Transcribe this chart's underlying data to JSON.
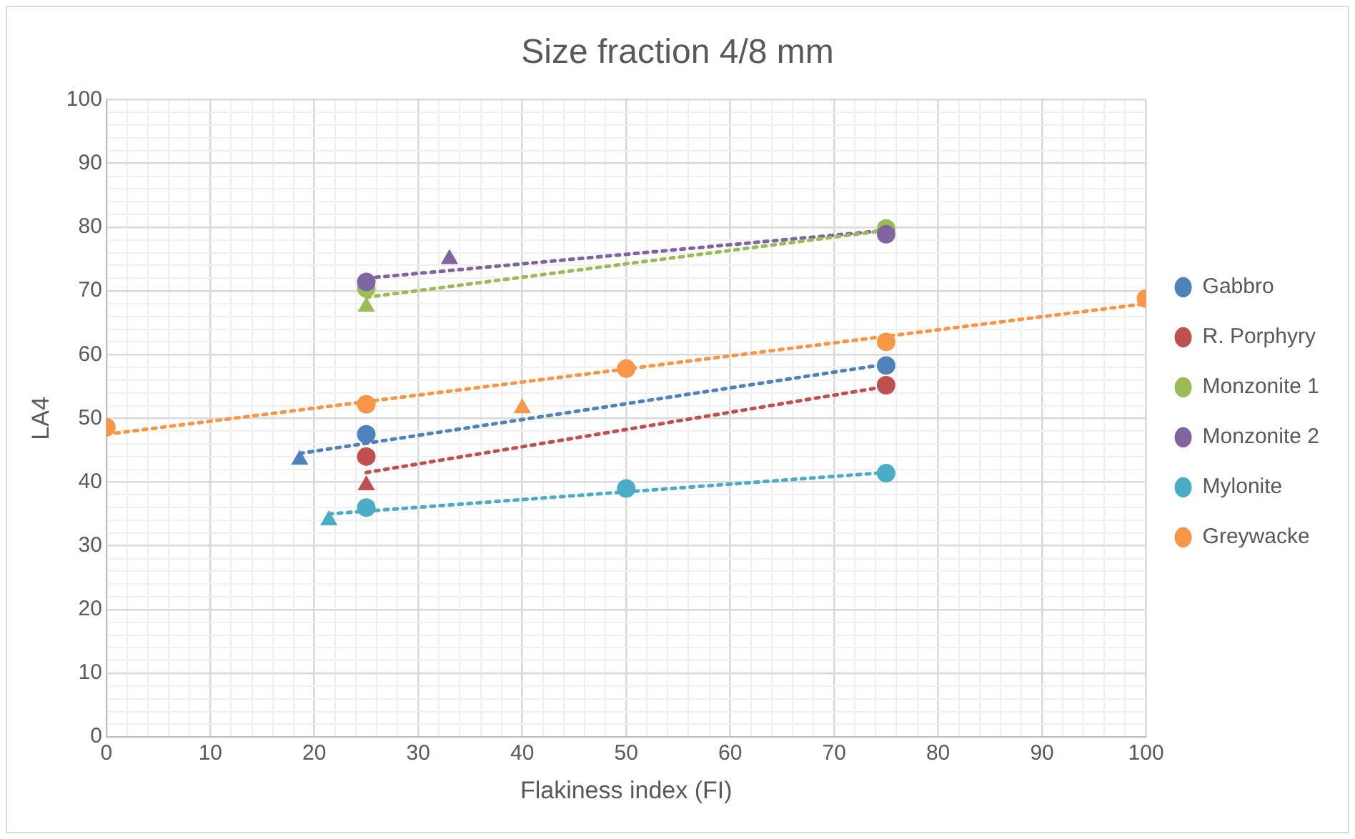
{
  "chart_data": {
    "type": "scatter",
    "title": "Size fraction 4/8 mm",
    "xlabel": "Flakiness index (FI)",
    "ylabel": "LA4",
    "xlim": [
      0,
      100
    ],
    "ylim": [
      0,
      100
    ],
    "xticks": [
      0,
      {
        "value": 2,
        "label": null
      },
      {
        "value": 4,
        "label": null
      },
      {
        "value": 6,
        "label": null
      },
      {
        "value": 8,
        "label": null
      },
      10,
      {
        "value": 12,
        "label": null
      },
      {
        "value": 14,
        "label": null
      },
      {
        "value": 16,
        "label": null
      },
      {
        "value": 18,
        "label": null
      },
      20,
      {
        "value": 22,
        "label": null
      },
      {
        "value": 24,
        "label": null
      },
      {
        "value": 26,
        "label": null
      },
      {
        "value": 28,
        "label": null
      },
      30,
      {
        "value": 32,
        "label": null
      },
      {
        "value": 34,
        "label": null
      },
      {
        "value": 36,
        "label": null
      },
      {
        "value": 38,
        "label": null
      },
      40,
      {
        "value": 42,
        "label": null
      },
      {
        "value": 44,
        "label": null
      },
      {
        "value": 46,
        "label": null
      },
      {
        "value": 48,
        "label": null
      },
      50,
      {
        "value": 52,
        "label": null
      },
      {
        "value": 54,
        "label": null
      },
      {
        "value": 56,
        "label": null
      },
      {
        "value": 58,
        "label": null
      },
      60,
      {
        "value": 62,
        "label": null
      },
      {
        "value": 64,
        "label": null
      },
      {
        "value": 66,
        "label": null
      },
      {
        "value": 68,
        "label": null
      },
      70,
      {
        "value": 72,
        "label": null
      },
      {
        "value": 74,
        "label": null
      },
      {
        "value": 76,
        "label": null
      },
      {
        "value": 78,
        "label": null
      },
      80,
      {
        "value": 82,
        "label": null
      },
      {
        "value": 84,
        "label": null
      },
      {
        "value": 86,
        "label": null
      },
      {
        "value": 88,
        "label": null
      },
      90,
      {
        "value": 92,
        "label": null
      },
      {
        "value": 94,
        "label": null
      },
      {
        "value": 96,
        "label": null
      },
      {
        "value": 98,
        "label": null
      },
      100
    ],
    "yticks": [
      0,
      {
        "value": 2,
        "label": null
      },
      {
        "value": 4,
        "label": null
      },
      {
        "value": 6,
        "label": null
      },
      {
        "value": 8,
        "label": null
      },
      10,
      {
        "value": 12,
        "label": null
      },
      {
        "value": 14,
        "label": null
      },
      {
        "value": 16,
        "label": null
      },
      {
        "value": 18,
        "label": null
      },
      20,
      {
        "value": 22,
        "label": null
      },
      {
        "value": 24,
        "label": null
      },
      {
        "value": 26,
        "label": null
      },
      {
        "value": 28,
        "label": null
      },
      30,
      {
        "value": 32,
        "label": null
      },
      {
        "value": 34,
        "label": null
      },
      {
        "value": 36,
        "label": null
      },
      {
        "value": 38,
        "label": null
      },
      40,
      {
        "value": 42,
        "label": null
      },
      {
        "value": 44,
        "label": null
      },
      {
        "value": 46,
        "label": null
      },
      {
        "value": 48,
        "label": null
      },
      50,
      {
        "value": 52,
        "label": null
      },
      {
        "value": 54,
        "label": null
      },
      {
        "value": 56,
        "label": null
      },
      {
        "value": 58,
        "label": null
      },
      60,
      {
        "value": 62,
        "label": null
      },
      {
        "value": 64,
        "label": null
      },
      {
        "value": 66,
        "label": null
      },
      {
        "value": 68,
        "label": null
      },
      70,
      {
        "value": 72,
        "label": null
      },
      {
        "value": 74,
        "label": null
      },
      {
        "value": 76,
        "label": null
      },
      {
        "value": 78,
        "label": null
      },
      80,
      {
        "value": 82,
        "label": null
      },
      {
        "value": 84,
        "label": null
      },
      {
        "value": 86,
        "label": null
      },
      {
        "value": 88,
        "label": null
      },
      90,
      {
        "value": 92,
        "label": null
      },
      {
        "value": 94,
        "label": null
      },
      {
        "value": 96,
        "label": null
      },
      {
        "value": 98,
        "label": null
      },
      100
    ],
    "grid": true,
    "legend": "right",
    "marker": "circle",
    "series": [
      {
        "type": "line",
        "color": "#4f81bd",
        "line_style": "dotted",
        "marker": "none",
        "x": [
          18.6,
          75
        ],
        "values": [
          44.5,
          58.5
        ]
      },
      {
        "type": "line",
        "color": "#c0504d",
        "line_style": "dotted",
        "marker": "none",
        "x": [
          25,
          75
        ],
        "values": [
          41.5,
          55
        ]
      },
      {
        "type": "line",
        "color": "#9bbb59",
        "line_style": "dotted",
        "marker": "none",
        "x": [
          25,
          75
        ],
        "values": [
          69,
          79.5
        ]
      },
      {
        "type": "line",
        "color": "#8064a2",
        "line_style": "dotted",
        "marker": "none",
        "x": [
          25,
          75
        ],
        "values": [
          72,
          79.5
        ]
      },
      {
        "type": "line",
        "color": "#4bacc6",
        "line_style": "dotted",
        "marker": "none",
        "x": [
          21.4,
          75
        ],
        "values": [
          35,
          41.5
        ]
      },
      {
        "type": "line",
        "color": "#f79646",
        "line_style": "dotted",
        "marker": "none",
        "x": [
          0,
          100
        ],
        "values": [
          47.5,
          68
        ]
      },
      {
        "marker": "triangle",
        "color": "#4f81bd",
        "x": [
          18.6
        ],
        "values": [
          43.5
        ]
      },
      {
        "marker": "triangle",
        "color": "#c0504d",
        "x": [
          25
        ],
        "values": [
          39.5
        ]
      },
      {
        "marker": "triangle",
        "color": "#9bbb59",
        "x": [
          25
        ],
        "values": [
          67.5
        ]
      },
      {
        "marker": "triangle",
        "color": "#8064a2",
        "x": [
          33
        ],
        "values": [
          75
        ]
      },
      {
        "marker": "triangle",
        "color": "#4bacc6",
        "x": [
          21.4
        ],
        "values": [
          34
        ]
      },
      {
        "marker": "triangle",
        "color": "#f79646",
        "x": [
          40
        ],
        "values": [
          51.6
        ]
      },
      {
        "name": "Gabbro",
        "color": "#4f81bd",
        "x": [
          25,
          75
        ],
        "values": [
          47.5,
          58.3
        ]
      },
      {
        "name": "R. Porphyry",
        "color": "#c0504d",
        "x": [
          25,
          75
        ],
        "values": [
          44,
          55.2
        ]
      },
      {
        "name": "Monzonite 1",
        "color": "#9bbb59",
        "x": [
          25,
          75
        ],
        "values": [
          70.4,
          79.8
        ]
      },
      {
        "name": "Monzonite 2",
        "color": "#8064a2",
        "x": [
          25,
          75
        ],
        "values": [
          71.4,
          78.9
        ]
      },
      {
        "name": "Mylonite",
        "color": "#4bacc6",
        "x": [
          25,
          50,
          75
        ],
        "values": [
          36,
          39,
          41.4
        ]
      },
      {
        "name": "Greywacke",
        "color": "#f79646",
        "x": [
          0,
          25,
          50,
          75,
          100
        ],
        "values": [
          48.6,
          52.2,
          57.8,
          62,
          68.8
        ]
      }
    ]
  }
}
